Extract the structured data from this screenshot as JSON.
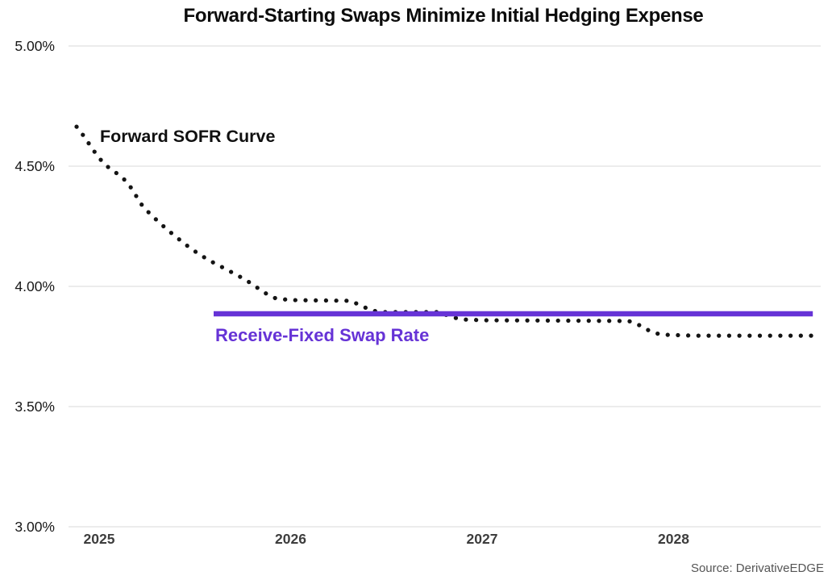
{
  "title": "Forward-Starting Swaps Minimize Initial Hedging Expense",
  "source": "Source: DerivativeEDGE",
  "annotations": {
    "sofr_label": "Forward SOFR Curve",
    "swap_label": "Receive-Fixed Swap Rate"
  },
  "colors": {
    "accent_purple": "#6633d6",
    "dot_black": "#141414",
    "grid": "#d9d9d9",
    "y_tick_text": "#181818",
    "x_tick_text": "#3d3d3d",
    "source_text": "#555555"
  },
  "chart_data": {
    "type": "line",
    "title": "Forward-Starting Swaps Minimize Initial Hedging Expense",
    "xlabel": "",
    "ylabel": "",
    "grid": "horizontal",
    "legend": "none (inline annotations)",
    "x_axis": {
      "tick_labels": [
        "2025",
        "2026",
        "2027",
        "2028"
      ],
      "tick_values": [
        2025,
        2026,
        2027,
        2028
      ],
      "range": [
        2024.84,
        2028.77
      ]
    },
    "y_axis": {
      "tick_labels": [
        "5.00%",
        "4.50%",
        "4.00%",
        "3.50%",
        "3.00%"
      ],
      "tick_values": [
        5.0,
        4.5,
        4.0,
        3.5,
        3.0
      ],
      "range": [
        3.0,
        5.0
      ],
      "format": "percent"
    },
    "series": [
      {
        "name": "Forward SOFR Curve",
        "style": "dotted",
        "color": "#141414",
        "points": [
          [
            2024.882,
            4.664
          ],
          [
            2024.924,
            4.621
          ],
          [
            2024.966,
            4.57
          ],
          [
            2025.008,
            4.527
          ],
          [
            2025.051,
            4.493
          ],
          [
            2025.105,
            4.463
          ],
          [
            2025.147,
            4.433
          ],
          [
            2025.181,
            4.393
          ],
          [
            2025.215,
            4.346
          ],
          [
            2025.265,
            4.302
          ],
          [
            2025.324,
            4.258
          ],
          [
            2025.387,
            4.215
          ],
          [
            2025.451,
            4.174
          ],
          [
            2025.514,
            4.138
          ],
          [
            2025.577,
            4.107
          ],
          [
            2025.64,
            4.081
          ],
          [
            2025.703,
            4.054
          ],
          [
            2025.766,
            4.027
          ],
          [
            2025.821,
            3.997
          ],
          [
            2025.872,
            3.97
          ],
          [
            2025.922,
            3.95
          ],
          [
            2025.998,
            3.943
          ],
          [
            2026.314,
            3.94
          ],
          [
            2026.377,
            3.916
          ],
          [
            2026.427,
            3.899
          ],
          [
            2026.482,
            3.893
          ],
          [
            2026.777,
            3.893
          ],
          [
            2026.84,
            3.872
          ],
          [
            2026.903,
            3.862
          ],
          [
            2027.008,
            3.859
          ],
          [
            2027.766,
            3.856
          ],
          [
            2027.829,
            3.836
          ],
          [
            2027.88,
            3.812
          ],
          [
            2027.935,
            3.799
          ],
          [
            2028.103,
            3.795
          ],
          [
            2028.735,
            3.795
          ]
        ]
      },
      {
        "name": "Receive-Fixed Swap Rate",
        "style": "solid",
        "color": "#6633d6",
        "points": [
          [
            2025.598,
            3.886
          ],
          [
            2028.727,
            3.886
          ]
        ]
      }
    ]
  }
}
